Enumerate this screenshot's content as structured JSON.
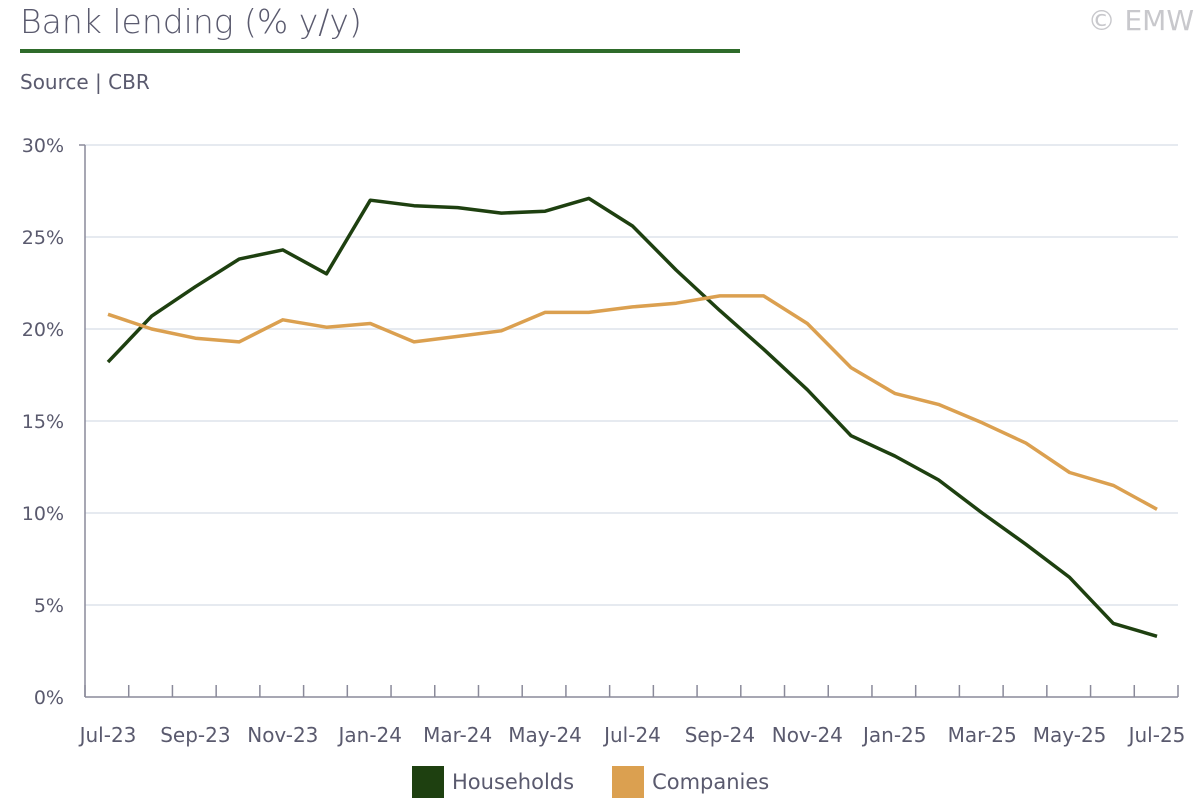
{
  "header": {
    "title": "Bank lending (% y/y)",
    "source": "Source | CBR",
    "copyright": "© EMW"
  },
  "chart_data": {
    "type": "line",
    "title": "Bank lending (% y/y)",
    "xlabel": "",
    "ylabel": "",
    "ylim": [
      0,
      30
    ],
    "yticks": [
      "0%",
      "5%",
      "10%",
      "15%",
      "20%",
      "25%",
      "30%"
    ],
    "ytick_values": [
      0,
      5,
      10,
      15,
      20,
      25,
      30
    ],
    "x": [
      "Jul-23",
      "Aug-23",
      "Sep-23",
      "Oct-23",
      "Nov-23",
      "Dec-23",
      "Jan-24",
      "Feb-24",
      "Mar-24",
      "Apr-24",
      "May-24",
      "Jun-24",
      "Jul-24",
      "Aug-24",
      "Sep-24",
      "Oct-24",
      "Nov-24",
      "Dec-24",
      "Jan-25",
      "Feb-25",
      "Mar-25",
      "Apr-25",
      "May-25",
      "Jun-25",
      "Jul-25"
    ],
    "xtick_labels": [
      "Jul-23",
      "Sep-23",
      "Nov-23",
      "Jan-24",
      "Mar-24",
      "May-24",
      "Jul-24",
      "Sep-24",
      "Nov-24",
      "Jan-25",
      "Mar-25",
      "May-25",
      "Jul-25"
    ],
    "grid": true,
    "legend_position": "bottom",
    "series": [
      {
        "name": "Households",
        "color": "#1e4010",
        "values": [
          18.2,
          20.7,
          22.3,
          23.8,
          24.3,
          23.0,
          27.0,
          26.7,
          26.6,
          26.3,
          26.4,
          27.1,
          25.6,
          23.2,
          21.0,
          18.9,
          16.7,
          14.2,
          13.1,
          11.8,
          10.0,
          8.3,
          6.5,
          4.0,
          3.3
        ]
      },
      {
        "name": "Companies",
        "color": "#dba050",
        "values": [
          20.8,
          20.0,
          19.5,
          19.3,
          20.5,
          20.1,
          20.3,
          19.3,
          19.6,
          19.9,
          20.9,
          20.9,
          21.2,
          21.4,
          21.8,
          21.8,
          20.3,
          17.9,
          16.5,
          15.9,
          14.9,
          13.8,
          12.2,
          11.5,
          10.2
        ]
      }
    ]
  }
}
